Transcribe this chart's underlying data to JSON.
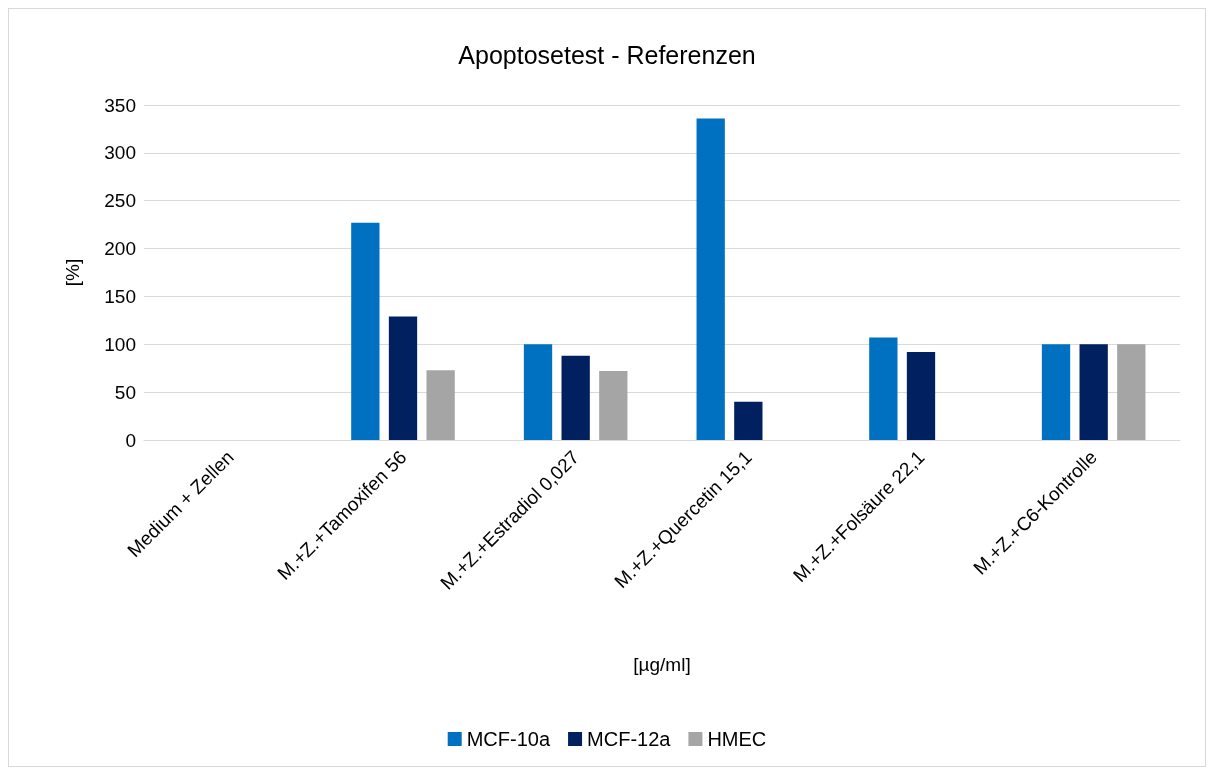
{
  "chart_data": {
    "type": "bar",
    "title": "Apoptosetest - Referenzen",
    "xlabel": "[µg/ml]",
    "ylabel": "[%]",
    "categories": [
      "Medium + Zellen",
      "M.+Z.+Tamoxifen 56",
      "M.+Z.+Estradiol 0,027",
      "M.+Z.+Quercetin 15,1",
      "M.+Z.+Folsäure 22,1",
      "M.+Z.+C6-Kontrolle"
    ],
    "series": [
      {
        "name": "MCF-10a",
        "color": "#0070c0",
        "values": [
          null,
          227,
          100,
          336,
          107,
          100
        ]
      },
      {
        "name": "MCF-12a",
        "color": "#002060",
        "values": [
          null,
          129,
          88,
          40,
          92,
          100
        ]
      },
      {
        "name": "HMEC",
        "color": "#a5a5a5",
        "values": [
          null,
          73,
          72,
          null,
          null,
          100
        ]
      }
    ],
    "ylim": [
      0,
      350
    ],
    "yticks": [
      0,
      50,
      100,
      150,
      200,
      250,
      300,
      350
    ],
    "grid": "y",
    "legend": "bottom"
  }
}
